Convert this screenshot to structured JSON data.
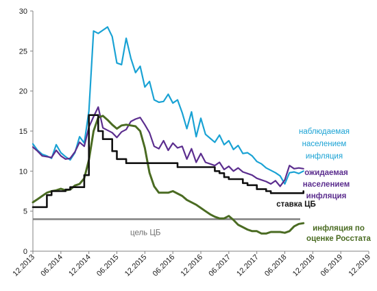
{
  "chart_data": {
    "type": "line",
    "title": "",
    "xlabel": "",
    "ylabel": "",
    "ylim": [
      0,
      30
    ],
    "yticks": [
      0,
      5,
      10,
      15,
      20,
      25,
      30
    ],
    "xlim": [
      "2013-12",
      "2019-12"
    ],
    "xticks": [
      "12.2013",
      "06.2014",
      "12.2014",
      "06.2015",
      "12.2015",
      "06.2016",
      "12.2016",
      "06.2017",
      "12.2017",
      "06.2018",
      "12.2018",
      "06.2019",
      "12.2019"
    ],
    "grid": false,
    "series": [
      {
        "name": "наблюдаемая населением инфляция",
        "label_lines": [
          "наблюдаемая",
          "населением",
          "инфляция"
        ],
        "color": "#19a2d4",
        "x": [
          "2013-12",
          "2014-01",
          "2014-02",
          "2014-03",
          "2014-04",
          "2014-05",
          "2014-06",
          "2014-07",
          "2014-08",
          "2014-09",
          "2014-10",
          "2014-11",
          "2014-12",
          "2015-01",
          "2015-02",
          "2015-03",
          "2015-04",
          "2015-05",
          "2015-06",
          "2015-07",
          "2015-08",
          "2015-09",
          "2015-10",
          "2015-11",
          "2015-12",
          "2016-01",
          "2016-02",
          "2016-03",
          "2016-04",
          "2016-05",
          "2016-06",
          "2016-07",
          "2016-08",
          "2016-09",
          "2016-10",
          "2016-11",
          "2016-12",
          "2017-01",
          "2017-02",
          "2017-03",
          "2017-04",
          "2017-05",
          "2017-06",
          "2017-07",
          "2017-08",
          "2017-09",
          "2017-10",
          "2017-11",
          "2017-12",
          "2018-01",
          "2018-02",
          "2018-03",
          "2018-04",
          "2018-05",
          "2018-06",
          "2018-07",
          "2018-08",
          "2018-09",
          "2018-10"
        ],
        "values": [
          13.4,
          12.6,
          12.1,
          11.9,
          11.6,
          13.3,
          12.3,
          11.8,
          11.4,
          12.3,
          14.3,
          13.5,
          17.5,
          27.5,
          27.2,
          27.6,
          28.0,
          26.8,
          23.5,
          23.3,
          26.6,
          24.1,
          22.3,
          23.1,
          20.5,
          21.2,
          18.9,
          18.6,
          18.7,
          19.6,
          18.5,
          18.9,
          17.3,
          15.3,
          17.4,
          14.3,
          16.6,
          14.6,
          14.1,
          13.6,
          14.5,
          13.3,
          13.8,
          12.7,
          13.2,
          12.2,
          12.3,
          11.9,
          11.2,
          10.9,
          10.4,
          10.1,
          9.8,
          9.4,
          8.4,
          9.8,
          9.9,
          9.7,
          10.0
        ]
      },
      {
        "name": "ожидаемая населением инфляция",
        "label_lines": [
          "ожидаемая",
          "населением",
          "инфляция"
        ],
        "color": "#5b2d8e",
        "x": [
          "2013-12",
          "2014-01",
          "2014-02",
          "2014-03",
          "2014-04",
          "2014-05",
          "2014-06",
          "2014-07",
          "2014-08",
          "2014-09",
          "2014-10",
          "2014-11",
          "2014-12",
          "2015-01",
          "2015-02",
          "2015-03",
          "2015-04",
          "2015-05",
          "2015-06",
          "2015-07",
          "2015-08",
          "2015-09",
          "2015-10",
          "2015-11",
          "2015-12",
          "2016-01",
          "2016-02",
          "2016-03",
          "2016-04",
          "2016-05",
          "2016-06",
          "2016-07",
          "2016-08",
          "2016-09",
          "2016-10",
          "2016-11",
          "2016-12",
          "2017-01",
          "2017-02",
          "2017-03",
          "2017-04",
          "2017-05",
          "2017-06",
          "2017-07",
          "2017-08",
          "2017-09",
          "2017-10",
          "2017-11",
          "2017-12",
          "2018-01",
          "2018-02",
          "2018-03",
          "2018-04",
          "2018-05",
          "2018-06",
          "2018-07",
          "2018-08",
          "2018-09",
          "2018-10"
        ],
        "values": [
          13.0,
          12.5,
          11.9,
          11.8,
          11.7,
          12.6,
          11.9,
          11.5,
          11.6,
          12.4,
          13.6,
          13.1,
          15.5,
          16.8,
          18.0,
          15.4,
          15.1,
          14.8,
          14.2,
          14.9,
          15.2,
          16.2,
          16.5,
          16.7,
          15.8,
          14.8,
          13.1,
          12.8,
          13.8,
          12.6,
          13.5,
          12.9,
          13.1,
          11.5,
          12.8,
          11.1,
          12.2,
          11.1,
          10.9,
          10.7,
          11.1,
          10.2,
          10.6,
          10.0,
          10.4,
          9.9,
          9.7,
          9.5,
          9.1,
          8.9,
          8.7,
          8.4,
          8.8,
          8.1,
          8.9,
          10.7,
          10.3,
          10.4,
          10.3
        ]
      },
      {
        "name": "ставка ЦБ",
        "label_lines": [
          "ставка ЦБ"
        ],
        "color": "#111111",
        "x": [
          "2013-12",
          "2014-03",
          "2014-04",
          "2014-05",
          "2014-07",
          "2014-08",
          "2014-10",
          "2014-11",
          "2014-12",
          "2015-01",
          "2015-02",
          "2015-03",
          "2015-04",
          "2015-05",
          "2015-06",
          "2015-07",
          "2015-08",
          "2016-06",
          "2016-07",
          "2017-03",
          "2017-04",
          "2017-05",
          "2017-06",
          "2017-09",
          "2017-10",
          "2017-11",
          "2017-12",
          "2018-01",
          "2018-02",
          "2018-03",
          "2018-09",
          "2018-10"
        ],
        "values": [
          5.5,
          7.0,
          7.5,
          7.5,
          7.7,
          8.0,
          8.0,
          9.5,
          17.0,
          17.0,
          15.0,
          14.0,
          14.0,
          12.5,
          11.5,
          11.5,
          11.0,
          11.0,
          10.5,
          10.0,
          9.75,
          9.25,
          9.0,
          8.5,
          8.25,
          8.25,
          7.75,
          7.75,
          7.5,
          7.25,
          7.25,
          7.5
        ]
      },
      {
        "name": "инфляция по оценке Росстата",
        "label_lines": [
          "инфляция по",
          "оценке Росстата"
        ],
        "color": "#4a6b22",
        "x": [
          "2013-12",
          "2014-01",
          "2014-02",
          "2014-03",
          "2014-04",
          "2014-05",
          "2014-06",
          "2014-07",
          "2014-08",
          "2014-09",
          "2014-10",
          "2014-11",
          "2014-12",
          "2015-01",
          "2015-02",
          "2015-03",
          "2015-04",
          "2015-05",
          "2015-06",
          "2015-07",
          "2015-08",
          "2015-09",
          "2015-10",
          "2015-11",
          "2015-12",
          "2016-01",
          "2016-02",
          "2016-03",
          "2016-04",
          "2016-05",
          "2016-06",
          "2016-07",
          "2016-08",
          "2016-09",
          "2016-10",
          "2016-11",
          "2016-12",
          "2017-01",
          "2017-02",
          "2017-03",
          "2017-04",
          "2017-05",
          "2017-06",
          "2017-07",
          "2017-08",
          "2017-09",
          "2017-10",
          "2017-11",
          "2017-12",
          "2018-01",
          "2018-02",
          "2018-03",
          "2018-04",
          "2018-05",
          "2018-06",
          "2018-07",
          "2018-08",
          "2018-09",
          "2018-10"
        ],
        "values": [
          6.1,
          6.5,
          6.9,
          7.3,
          7.5,
          7.6,
          7.8,
          7.6,
          7.7,
          8.2,
          8.4,
          9.1,
          11.4,
          15.0,
          16.7,
          16.9,
          16.4,
          15.8,
          15.3,
          15.7,
          15.8,
          15.7,
          15.6,
          15.0,
          12.9,
          9.8,
          8.1,
          7.3,
          7.3,
          7.3,
          7.5,
          7.2,
          6.9,
          6.4,
          6.1,
          5.8,
          5.4,
          5.0,
          4.6,
          4.3,
          4.1,
          4.1,
          4.4,
          3.9,
          3.3,
          3.0,
          2.7,
          2.5,
          2.5,
          2.2,
          2.2,
          2.4,
          2.4,
          2.4,
          2.3,
          2.5,
          3.1,
          3.4,
          3.5
        ]
      }
    ],
    "reference_line": {
      "label": "цель ЦБ",
      "value": 4,
      "color": "#7f7f7f"
    }
  }
}
